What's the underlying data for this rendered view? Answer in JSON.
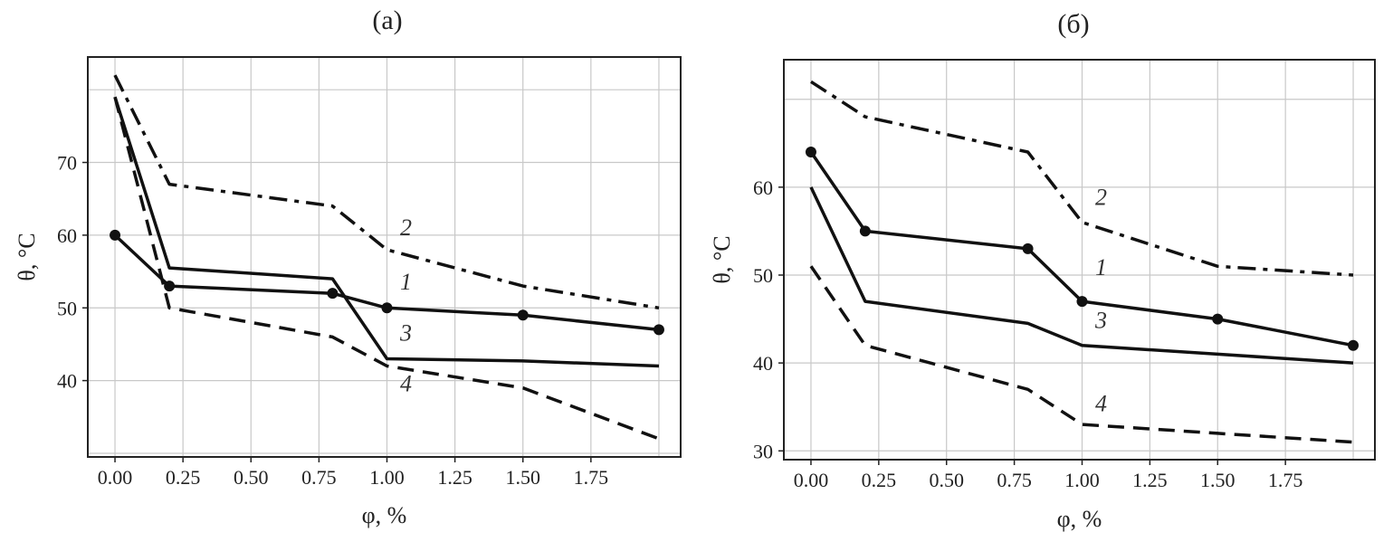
{
  "chart_data": [
    {
      "type": "line",
      "title": "(а)",
      "xlabel": "φ, %",
      "ylabel": "θ, °C",
      "xticks": [
        "0.00",
        "0.25",
        "0.50",
        "0.75",
        "1.00",
        "1.25",
        "1.50",
        "1.75"
      ],
      "yticks": [
        "40",
        "50",
        "60",
        "70"
      ],
      "xlim": [
        -0.1,
        2.08
      ],
      "ylim": [
        29.5,
        84.5
      ],
      "grid": true,
      "series": [
        {
          "name": "1",
          "x": [
            0,
            0.2,
            0.8,
            1.0,
            1.5,
            2.0
          ],
          "y": [
            60,
            53,
            52,
            50,
            49,
            47
          ],
          "style": "solid",
          "markers": true
        },
        {
          "name": "2",
          "x": [
            0,
            0.2,
            0.8,
            1.0,
            1.5,
            2.0
          ],
          "y": [
            82,
            67,
            64,
            58,
            53,
            50
          ],
          "style": "dashdot",
          "markers": false
        },
        {
          "name": "3",
          "x": [
            0,
            0.2,
            0.8,
            1.0,
            1.5,
            2.0
          ],
          "y": [
            79,
            55.5,
            54,
            43,
            42.7,
            42
          ],
          "style": "solid",
          "markers": false
        },
        {
          "name": "4",
          "x": [
            0,
            0.2,
            0.8,
            1.0,
            1.5,
            2.0
          ],
          "y": [
            79,
            50,
            46,
            42,
            39,
            32
          ],
          "style": "dashed",
          "markers": false
        }
      ],
      "labels": [
        {
          "text": "2",
          "x": 1.07,
          "y": 60
        },
        {
          "text": "1",
          "x": 1.07,
          "y": 52.5
        },
        {
          "text": "3",
          "x": 1.07,
          "y": 45.5
        },
        {
          "text": "4",
          "x": 1.07,
          "y": 38.5
        }
      ]
    },
    {
      "type": "line",
      "title": "(б)",
      "xlabel": "φ, %",
      "ylabel": "θ, °C",
      "xticks": [
        "0.00",
        "0.25",
        "0.50",
        "0.75",
        "1.00",
        "1.25",
        "1.50",
        "1.75"
      ],
      "yticks": [
        "30",
        "40",
        "50",
        "60"
      ],
      "xlim": [
        -0.1,
        2.08
      ],
      "ylim": [
        29,
        74.5
      ],
      "grid": true,
      "series": [
        {
          "name": "1",
          "x": [
            0,
            0.2,
            0.8,
            1.0,
            1.5,
            2.0
          ],
          "y": [
            64,
            55,
            53,
            47,
            45,
            42
          ],
          "style": "solid",
          "markers": true
        },
        {
          "name": "2",
          "x": [
            0,
            0.2,
            0.8,
            1.0,
            1.5,
            2.0
          ],
          "y": [
            72,
            68,
            64,
            56,
            51,
            50
          ],
          "style": "dashdot",
          "markers": false
        },
        {
          "name": "3",
          "x": [
            0,
            0.2,
            0.8,
            1.0,
            1.5,
            2.0
          ],
          "y": [
            60,
            47,
            44.5,
            42,
            41,
            40
          ],
          "style": "solid",
          "markers": false
        },
        {
          "name": "4",
          "x": [
            0,
            0.2,
            0.8,
            1.0,
            1.5,
            2.0
          ],
          "y": [
            51,
            42,
            37,
            33,
            32,
            31
          ],
          "style": "dashed",
          "markers": false
        }
      ],
      "labels": [
        {
          "text": "2",
          "x": 1.07,
          "y": 58
        },
        {
          "text": "1",
          "x": 1.07,
          "y": 50
        },
        {
          "text": "3",
          "x": 1.07,
          "y": 44
        },
        {
          "text": "4",
          "x": 1.07,
          "y": 34.5
        }
      ]
    }
  ]
}
